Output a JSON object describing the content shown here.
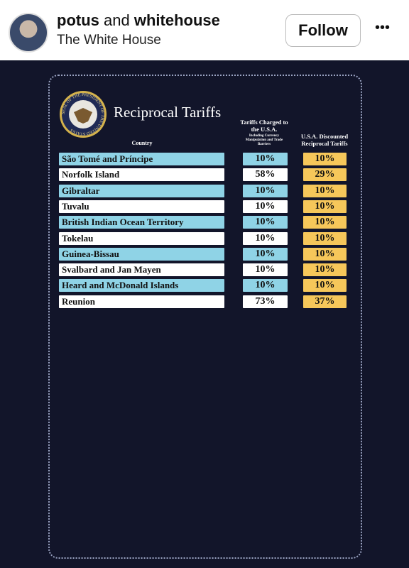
{
  "header": {
    "author_1": "potus",
    "joiner": "and",
    "author_2": "whitehouse",
    "subtitle": "The White House",
    "follow_button": "Follow",
    "menu": "•••"
  },
  "post": {
    "seal_text": "SEAL OF THE PRESIDENT OF THE UNITED STATES",
    "title": "Reciprocal Tariffs",
    "table": {
      "columns": [
        "Country",
        "Tariffs Charged to the U.S.A.",
        "U.S.A. Discounted Reciprocal Tariffs"
      ],
      "column_note": "Including Currency Manipulation and Trade Barriers",
      "rows": [
        [
          "São Tomé and Príncipe",
          "10%",
          "10%"
        ],
        [
          "Norfolk Island",
          "58%",
          "29%"
        ],
        [
          "Gibraltar",
          "10%",
          "10%"
        ],
        [
          "Tuvalu",
          "10%",
          "10%"
        ],
        [
          "British Indian Ocean Territory",
          "10%",
          "10%"
        ],
        [
          "Tokelau",
          "10%",
          "10%"
        ],
        [
          "Guinea-Bissau",
          "10%",
          "10%"
        ],
        [
          "Svalbard and Jan Mayen",
          "10%",
          "10%"
        ],
        [
          "Heard and McDonald Islands",
          "10%",
          "10%"
        ],
        [
          "Reunion",
          "73%",
          "37%"
        ]
      ]
    }
  }
}
